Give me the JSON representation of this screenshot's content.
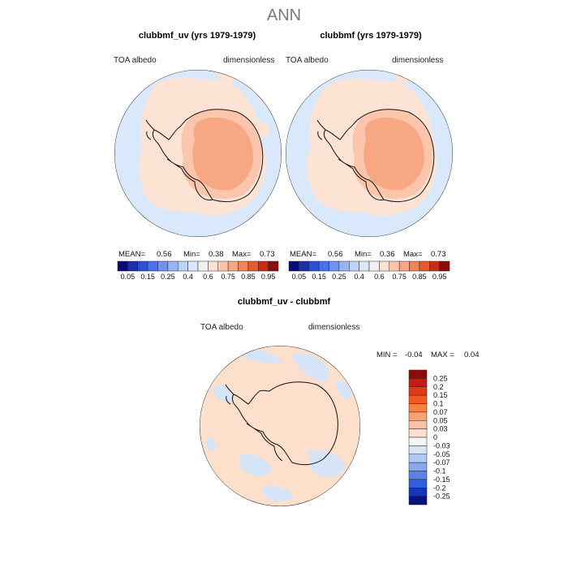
{
  "main_title": "ANN",
  "panels": [
    {
      "title": "clubbmf_uv (yrs 1979-1979)",
      "left_label": "TOA  albedo",
      "right_label": "dimensionless",
      "mean_label": "MEAN=",
      "mean": "0.56",
      "min_label": "Min=",
      "min": "0.38",
      "max_label": "Max=",
      "max": "0.73"
    },
    {
      "title": "clubbmf (yrs 1979-1979)",
      "left_label": "TOA  albedo",
      "right_label": "dimensionless",
      "mean_label": "MEAN=",
      "mean": "0.56",
      "min_label": "Min=",
      "min": "0.36",
      "max_label": "Max=",
      "max": "0.73"
    },
    {
      "title": "clubbmf_uv - clubbmf",
      "left_label": "TOA  albedo",
      "right_label": "dimensionless",
      "min_label": "MIN =",
      "min": "-0.04",
      "max_label": "MAX =",
      "max": "0.04"
    }
  ],
  "chart_data": [
    {
      "type": "heatmap",
      "projection": "south-polar stereographic",
      "title": "clubbmf_uv (yrs 1979-1979)",
      "variable": "TOA  albedo",
      "units": "dimensionless",
      "stats": {
        "mean": 0.56,
        "min": 0.38,
        "max": 0.73
      },
      "colorbar": {
        "orientation": "horizontal",
        "levels": [
          "0.05",
          "0.15",
          "0.25",
          "0.4",
          "0.6",
          "0.75",
          "0.85",
          "0.95"
        ],
        "colors": [
          "#0a0a7a",
          "#1a2fa8",
          "#2a4fd8",
          "#4a72ee",
          "#6f93f3",
          "#96b4f6",
          "#bdd2f8",
          "#dce8fb",
          "#f2f2f2",
          "#fde3d4",
          "#fbc6ac",
          "#f7a782",
          "#f18457",
          "#e65a33",
          "#c82e17",
          "#8c0c0c"
        ]
      }
    },
    {
      "type": "heatmap",
      "projection": "south-polar stereographic",
      "title": "clubbmf (yrs 1979-1979)",
      "variable": "TOA  albedo",
      "units": "dimensionless",
      "stats": {
        "mean": 0.56,
        "min": 0.36,
        "max": 0.73
      },
      "colorbar": {
        "orientation": "horizontal",
        "levels": [
          "0.05",
          "0.15",
          "0.25",
          "0.4",
          "0.6",
          "0.75",
          "0.85",
          "0.95"
        ],
        "colors": [
          "#0a0a7a",
          "#1a2fa8",
          "#2a4fd8",
          "#4a72ee",
          "#6f93f3",
          "#96b4f6",
          "#bdd2f8",
          "#dce8fb",
          "#f2f2f2",
          "#fde3d4",
          "#fbc6ac",
          "#f7a782",
          "#f18457",
          "#e65a33",
          "#c82e17",
          "#8c0c0c"
        ]
      }
    },
    {
      "type": "heatmap",
      "projection": "south-polar stereographic",
      "title": "clubbmf_uv - clubbmf",
      "variable": "TOA  albedo",
      "units": "dimensionless",
      "stats": {
        "min": -0.04,
        "max": 0.04
      },
      "colorbar": {
        "orientation": "vertical",
        "levels": [
          "0.25",
          "0.2",
          "0.15",
          "0.1",
          "0.07",
          "0.05",
          "0.03",
          "0",
          "-0.03",
          "-0.05",
          "-0.07",
          "-0.1",
          "-0.15",
          "-0.2",
          "-0.25"
        ],
        "colors": [
          "#8c0c0c",
          "#c81a10",
          "#e23a14",
          "#f25a20",
          "#f88040",
          "#fba070",
          "#fcc2a0",
          "#fde0cc",
          "#f4f4f4",
          "#d6e4f8",
          "#b0c8f4",
          "#88a8f0",
          "#5a82ec",
          "#3060e0",
          "#1636b8",
          "#08127e"
        ]
      }
    }
  ]
}
